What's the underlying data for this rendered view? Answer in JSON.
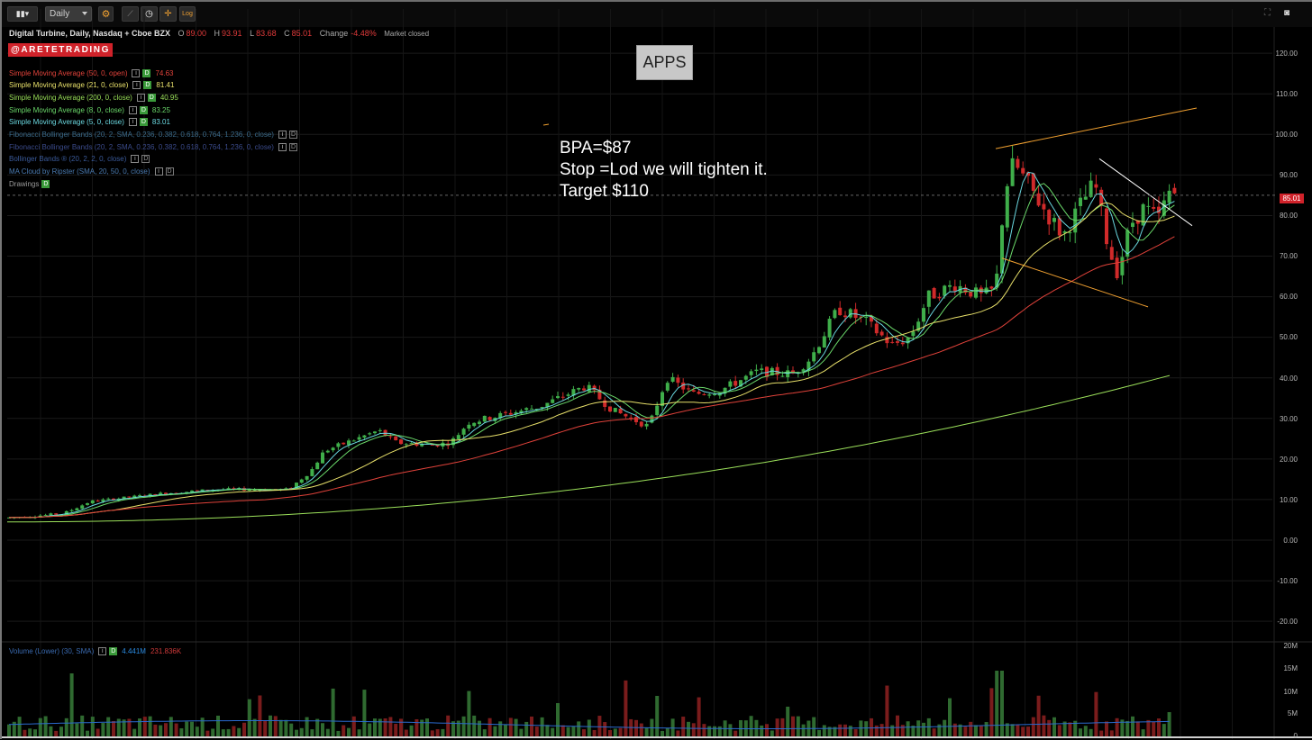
{
  "toolbar": {
    "interval_label": "Daily",
    "log_label": "Log",
    "icons": [
      "chart-style-icon",
      "settings-icon",
      "draw-icon",
      "clock-icon",
      "crosshair-icon",
      "log-scale-icon",
      "fullscreen-icon",
      "camera-icon"
    ]
  },
  "header": {
    "symbol": "Digital Turbine, Daily, Nasdaq + Cboe BZX",
    "open_label": "O",
    "open": "89.00",
    "high_label": "H",
    "high": "93.91",
    "low_label": "L",
    "low": "83.68",
    "close_label": "C",
    "close": "85.01",
    "change_label": "Change",
    "change": "-4.48%",
    "status": "Market closed"
  },
  "logo_text": "@ARETETRADING",
  "ticker_box": "APPS",
  "notes": [
    "BPA=$87",
    "Stop =Lod we will tighten it.",
    "Target $110"
  ],
  "indicators": [
    {
      "name": "Simple Moving Average (50, 0, open)",
      "value": "74.63",
      "color": "#e0423a"
    },
    {
      "name": "Simple Moving Average (21, 0, close)",
      "value": "81.41",
      "color": "#e8e06a"
    },
    {
      "name": "Simple Moving Average (200, 0, close)",
      "value": "40.95",
      "color": "#9be05a"
    },
    {
      "name": "Simple Moving Average (8, 0, close)",
      "value": "83.25",
      "color": "#6ad86a"
    },
    {
      "name": "Simple Moving Average (5, 0, close)",
      "value": "83.01",
      "color": "#6ad8e0"
    },
    {
      "name": "Fibonacci Bollinger Bands (20, 2, SMA, 0.236, 0.382, 0.618, 0.764, 1.236, 0, close)",
      "value": "",
      "color": "#3a6a8a"
    },
    {
      "name": "Fibonacci Bollinger Bands (20, 2, SMA, 0.236, 0.382, 0.618, 0.764, 1.236, 0, close)",
      "value": "",
      "color": "#3a4a8a"
    },
    {
      "name": "Bollinger Bands ® (20, 2, 2, 0, close)",
      "value": "",
      "color": "#3a5a9a"
    },
    {
      "name": "MA Cloud by Ripster (SMA, 20, 50, 0, close)",
      "value": "",
      "color": "#4a7ab0"
    },
    {
      "name": "Drawings",
      "value": "",
      "color": "#9a9a9a"
    }
  ],
  "volume": {
    "label": "Volume (Lower) (30, SMA)",
    "value1": "4.441M",
    "value2": "231.836K"
  },
  "price_axis": [
    "120.00",
    "110.00",
    "100.00",
    "90.00",
    "80.00",
    "70.00",
    "60.00",
    "50.00",
    "40.00",
    "30.00",
    "20.00",
    "10.00",
    "0.00",
    "-10.00",
    "-20.00"
  ],
  "volume_axis": [
    "20M",
    "15M",
    "10M",
    "5M",
    "0"
  ],
  "last_price": "85.01",
  "colors": {
    "up": "#3fae4a",
    "down": "#d02a2a",
    "sma50": "#e0423a",
    "sma21": "#e8e06a",
    "sma200": "#9be05a",
    "sma8": "#6ad86a",
    "sma5": "#6ad8e0",
    "trend": "#f0a030",
    "downtrend": "#ffffff",
    "volume_avg": "#2a6ad0"
  },
  "chart_data": {
    "type": "candlestick",
    "ylim": [
      -25,
      125
    ],
    "trendlines": [
      {
        "name": "upper",
        "from": [
          0.76,
          96.5
        ],
        "to": [
          0.91,
          106.5
        ]
      },
      {
        "name": "lower",
        "from": [
          0.76,
          69.5
        ],
        "to": [
          0.876,
          57.5
        ]
      },
      {
        "name": "down",
        "from": [
          0.836,
          94
        ],
        "to": [
          0.908,
          77.5
        ]
      }
    ]
  }
}
